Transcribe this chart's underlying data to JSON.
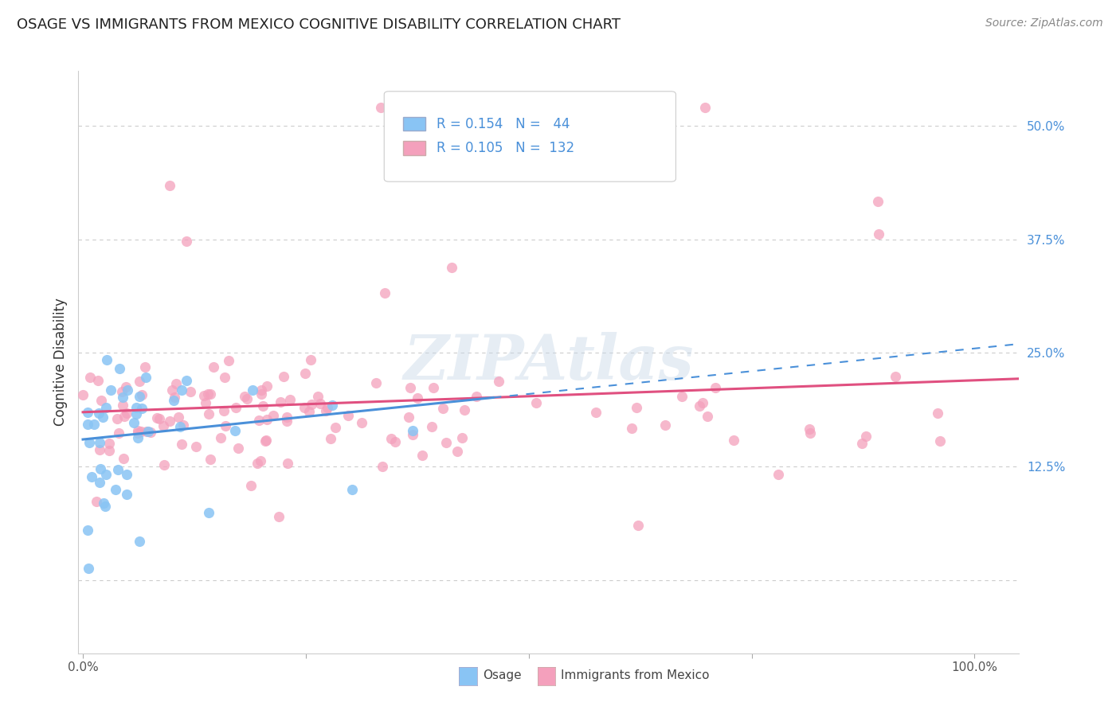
{
  "title": "OSAGE VS IMMIGRANTS FROM MEXICO COGNITIVE DISABILITY CORRELATION CHART",
  "source": "Source: ZipAtlas.com",
  "ylabel": "Cognitive Disability",
  "legend_label1": "Osage",
  "legend_label2": "Immigrants from Mexico",
  "R1": 0.154,
  "N1": 44,
  "R2": 0.105,
  "N2": 132,
  "color1": "#89c4f4",
  "color2": "#f4a0bc",
  "line_color1": "#4a90d9",
  "line_color2": "#e05080",
  "background_color": "#ffffff",
  "grid_color": "#cccccc",
  "y_ticks": [
    0.0,
    0.125,
    0.25,
    0.375,
    0.5
  ],
  "y_tick_labels_right": [
    "",
    "12.5%",
    "25.0%",
    "37.5%",
    "50.0%"
  ],
  "xlim": [
    -0.005,
    1.05
  ],
  "ylim": [
    -0.08,
    0.56
  ],
  "watermark": "ZIPAtlas",
  "title_fontsize": 13,
  "source_fontsize": 10,
  "tick_fontsize": 11,
  "legend_fontsize": 12
}
